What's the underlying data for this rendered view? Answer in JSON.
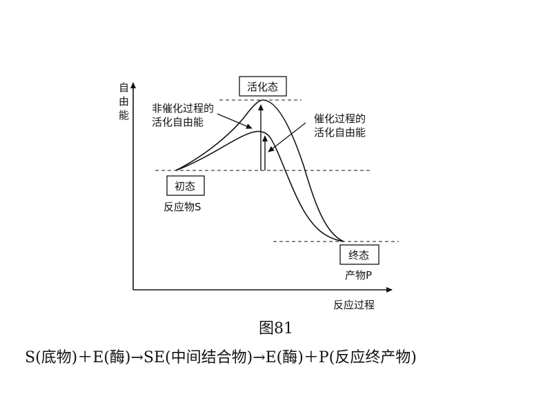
{
  "diagram": {
    "y_axis_label": "自由能",
    "x_axis_label": "反应过程",
    "activated_state": "活化态",
    "initial_state": "初态",
    "initial_note": "反应物S",
    "final_state": "终态",
    "final_note": "产物P",
    "uncatalyzed_line1": "非催化过程的",
    "uncatalyzed_line2": "活化自由能",
    "catalyzed_line1": "催化过程的",
    "catalyzed_line2": "活化自由能"
  },
  "caption": "图81",
  "equation": "S(底物)＋E(酶)→SE(中间结合物)→E(酶)＋P(反应终产物)"
}
